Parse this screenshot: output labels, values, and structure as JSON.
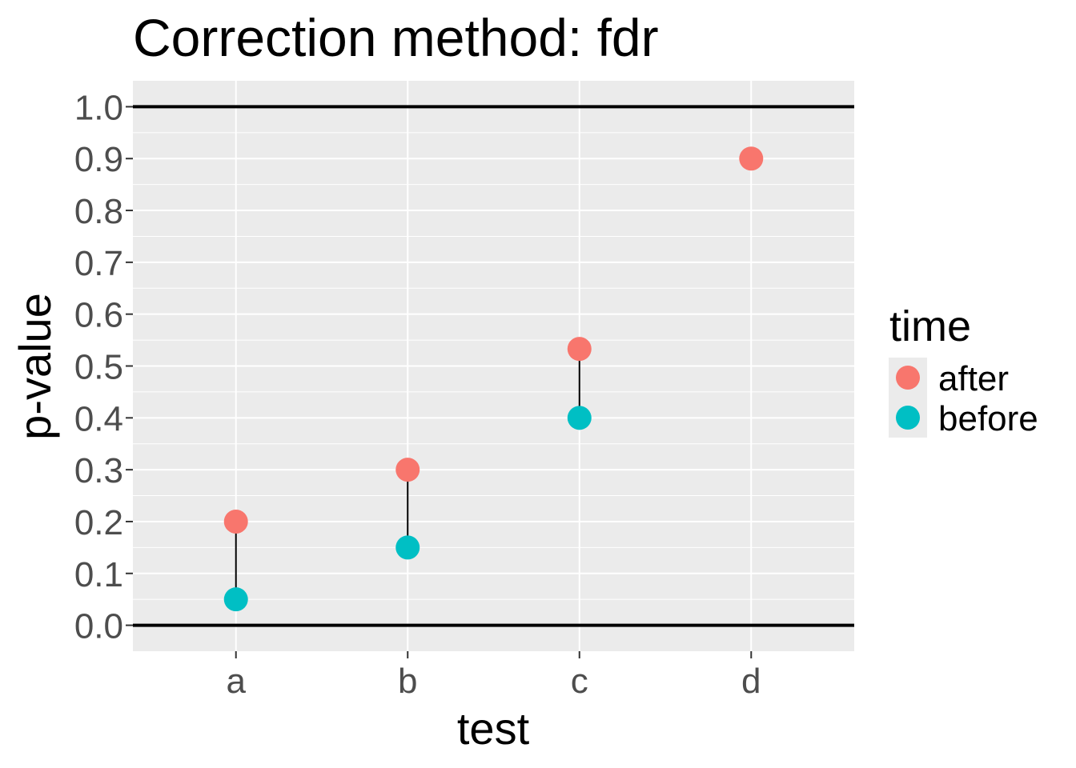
{
  "chart_data": {
    "type": "scatter",
    "title": "Correction method: fdr",
    "xlabel": "test",
    "ylabel": "p-value",
    "categories": [
      "a",
      "b",
      "c",
      "d"
    ],
    "ylim": [
      -0.05,
      1.05
    ],
    "yticks": [
      "0.0",
      "0.1",
      "0.2",
      "0.3",
      "0.4",
      "0.5",
      "0.6",
      "0.7",
      "0.8",
      "0.9",
      "1.0"
    ],
    "hlines": [
      0.0,
      1.0
    ],
    "grid": true,
    "legend": {
      "title": "time",
      "position": "right",
      "entries": [
        "after",
        "before"
      ]
    },
    "series": [
      {
        "name": "after",
        "color": "#F8766D",
        "values": [
          0.2,
          0.3,
          0.533,
          0.9
        ]
      },
      {
        "name": "before",
        "color": "#00BFC4",
        "values": [
          0.05,
          0.15,
          0.4,
          null
        ]
      }
    ],
    "colors": {
      "panel_background": "#EBEBEB",
      "grid": "#FFFFFF",
      "connector": "#000000",
      "hline": "#000000"
    }
  }
}
